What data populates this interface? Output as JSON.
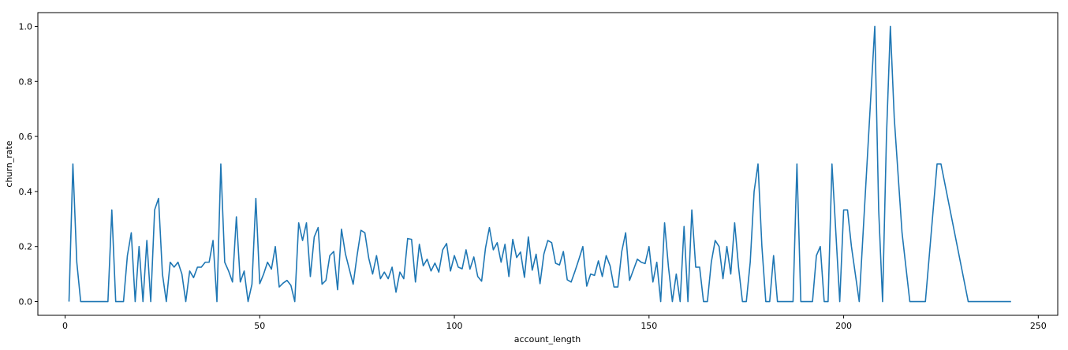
{
  "chart_data": {
    "type": "line",
    "title": "",
    "xlabel": "account_length",
    "ylabel": "churn_rate",
    "xlim": [
      -7,
      255
    ],
    "ylim": [
      -0.05,
      1.05
    ],
    "xticks": [
      0,
      50,
      100,
      150,
      200,
      250
    ],
    "yticks": [
      0.0,
      0.2,
      0.4,
      0.6,
      0.8,
      1.0
    ],
    "xtick_labels": [
      "0",
      "50",
      "100",
      "150",
      "200",
      "250"
    ],
    "ytick_labels": [
      "0.0",
      "0.2",
      "0.4",
      "0.6",
      "0.8",
      "1.0"
    ],
    "grid": false,
    "series": [
      {
        "color": "#1f77b4",
        "x": [
          1,
          2,
          3,
          4,
          5,
          6,
          7,
          8,
          9,
          10,
          11,
          12,
          13,
          14,
          15,
          16,
          17,
          18,
          19,
          20,
          21,
          22,
          23,
          24,
          25,
          26,
          27,
          28,
          29,
          30,
          31,
          32,
          33,
          34,
          35,
          36,
          37,
          38,
          39,
          40,
          41,
          42,
          43,
          44,
          45,
          46,
          47,
          48,
          49,
          50,
          51,
          52,
          53,
          54,
          55,
          56,
          57,
          58,
          59,
          60,
          61,
          62,
          63,
          64,
          65,
          66,
          67,
          68,
          69,
          70,
          71,
          72,
          73,
          74,
          75,
          76,
          77,
          78,
          79,
          80,
          81,
          82,
          83,
          84,
          85,
          86,
          87,
          88,
          89,
          90,
          91,
          92,
          93,
          94,
          95,
          96,
          97,
          98,
          99,
          100,
          101,
          102,
          103,
          104,
          105,
          106,
          107,
          108,
          109,
          110,
          111,
          112,
          113,
          114,
          115,
          116,
          117,
          118,
          119,
          120,
          121,
          122,
          123,
          124,
          125,
          126,
          127,
          128,
          129,
          130,
          131,
          132,
          133,
          134,
          135,
          136,
          137,
          138,
          139,
          140,
          141,
          142,
          143,
          144,
          145,
          146,
          147,
          148,
          149,
          150,
          151,
          152,
          153,
          154,
          155,
          156,
          157,
          158,
          159,
          160,
          161,
          162,
          163,
          164,
          165,
          166,
          167,
          168,
          169,
          170,
          171,
          172,
          173,
          174,
          175,
          176,
          177,
          178,
          179,
          180,
          181,
          182,
          183,
          184,
          185,
          186,
          187,
          188,
          189,
          190,
          191,
          192,
          193,
          194,
          195,
          196,
          197,
          198,
          199,
          200,
          201,
          202,
          203,
          204,
          205,
          206,
          208,
          209,
          210,
          211,
          212,
          213,
          215,
          217,
          221,
          224,
          225,
          232,
          243
        ],
        "y": [
          0.0,
          0.5,
          0.143,
          0.0,
          0.0,
          0.0,
          0.0,
          0.0,
          0.0,
          0.0,
          0.0,
          0.333,
          0.0,
          0.0,
          0.0,
          0.167,
          0.25,
          0.0,
          0.2,
          0.0,
          0.222,
          0.0,
          0.333,
          0.375,
          0.1,
          0.0,
          0.143,
          0.125,
          0.143,
          0.1,
          0.0,
          0.111,
          0.087,
          0.125,
          0.125,
          0.143,
          0.143,
          0.222,
          0.0,
          0.5,
          0.143,
          0.111,
          0.071,
          0.308,
          0.071,
          0.111,
          0.0,
          0.063,
          0.375,
          0.065,
          0.1,
          0.143,
          0.118,
          0.2,
          0.053,
          0.067,
          0.077,
          0.059,
          0.0,
          0.286,
          0.222,
          0.286,
          0.091,
          0.235,
          0.269,
          0.063,
          0.077,
          0.167,
          0.182,
          0.043,
          0.263,
          0.174,
          0.118,
          0.063,
          0.167,
          0.259,
          0.25,
          0.158,
          0.1,
          0.167,
          0.083,
          0.107,
          0.083,
          0.125,
          0.034,
          0.107,
          0.083,
          0.229,
          0.226,
          0.071,
          0.208,
          0.13,
          0.154,
          0.111,
          0.14,
          0.107,
          0.188,
          0.211,
          0.111,
          0.167,
          0.125,
          0.119,
          0.188,
          0.118,
          0.162,
          0.091,
          0.074,
          0.195,
          0.269,
          0.188,
          0.214,
          0.143,
          0.208,
          0.091,
          0.226,
          0.16,
          0.18,
          0.088,
          0.235,
          0.114,
          0.172,
          0.065,
          0.173,
          0.222,
          0.214,
          0.139,
          0.133,
          0.182,
          0.079,
          0.071,
          0.111,
          0.154,
          0.2,
          0.056,
          0.1,
          0.095,
          0.148,
          0.091,
          0.167,
          0.13,
          0.053,
          0.053,
          0.182,
          0.25,
          0.077,
          0.115,
          0.154,
          0.143,
          0.138,
          0.2,
          0.071,
          0.143,
          0.0,
          0.286,
          0.125,
          0.0,
          0.1,
          0.0,
          0.273,
          0.0,
          0.333,
          0.125,
          0.125,
          0.0,
          0.0,
          0.143,
          0.222,
          0.2,
          0.083,
          0.2,
          0.1,
          0.286,
          0.125,
          0.0,
          0.0,
          0.143,
          0.4,
          0.5,
          0.2,
          0.0,
          0.0,
          0.167,
          0.0,
          0.0,
          0.0,
          0.0,
          0.0,
          0.5,
          0.0,
          0.0,
          0.0,
          0.0,
          0.167,
          0.2,
          0.0,
          0.0,
          0.5,
          0.25,
          0.0,
          0.333,
          0.333,
          0.2,
          0.1,
          0.0,
          0.25,
          0.5,
          1.0,
          0.333,
          0.0,
          0.6,
          1.0,
          0.667,
          0.25,
          0.0,
          0.0,
          0.5,
          0.5,
          0.0,
          0.0
        ]
      }
    ]
  }
}
